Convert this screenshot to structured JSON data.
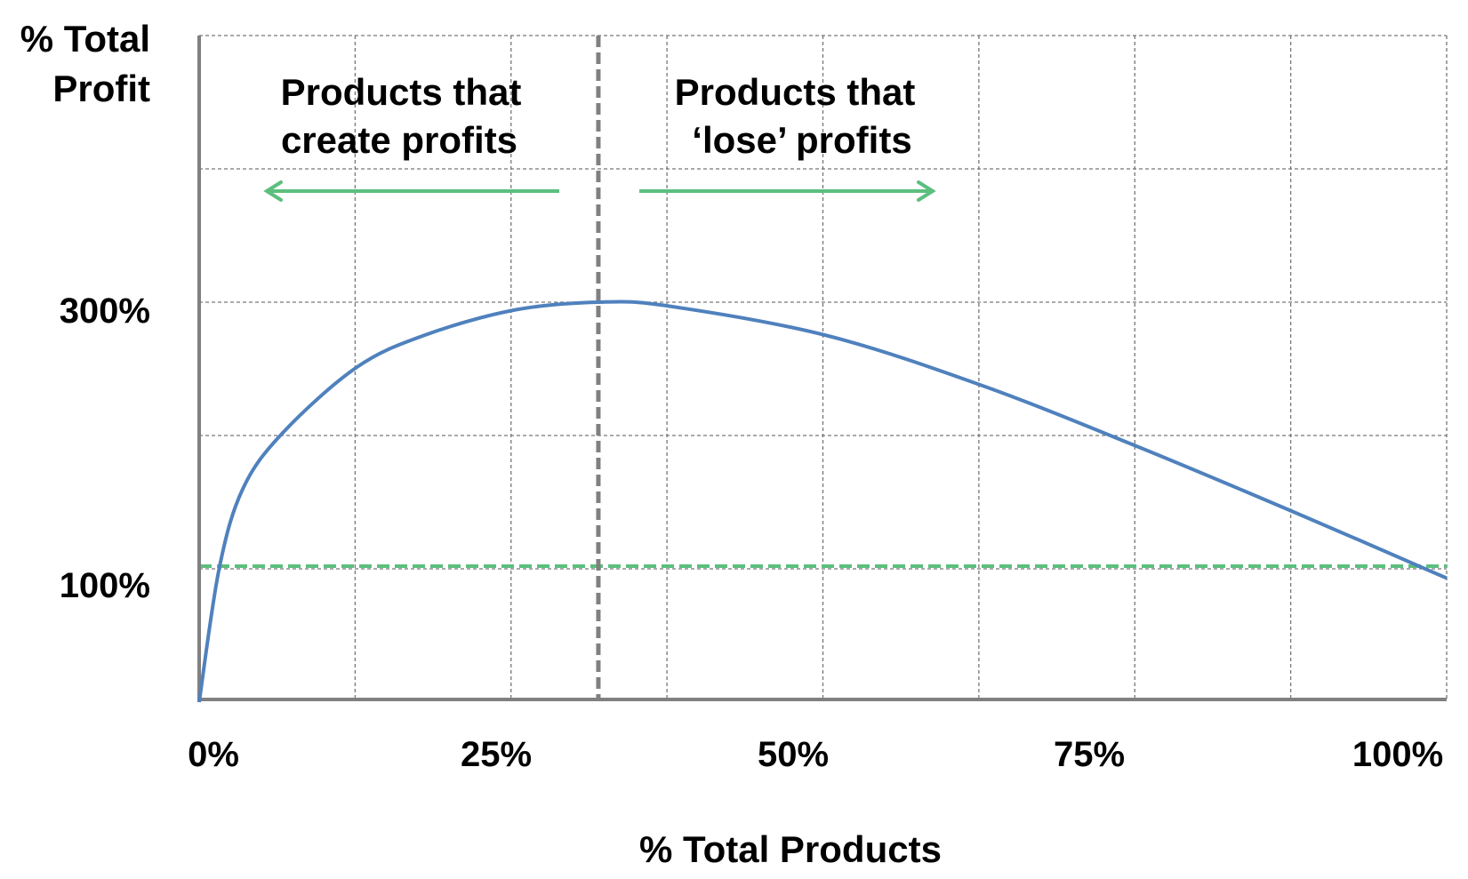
{
  "chart_data": {
    "type": "line",
    "title": "",
    "xlabel": "% Total Products",
    "ylabel_lines": [
      "% Total",
      "Profit"
    ],
    "xlim": [
      0,
      100
    ],
    "ylim": [
      0,
      500
    ],
    "grid": true,
    "x_ticks": [
      {
        "value": 0,
        "label": "0%"
      },
      {
        "value": 25,
        "label": "25%"
      },
      {
        "value": 50,
        "label": "50%"
      },
      {
        "value": 75,
        "label": "75%"
      },
      {
        "value": 100,
        "label": "100%"
      }
    ],
    "y_ticks": [
      {
        "value": 300,
        "label": "300%"
      },
      {
        "value": 100,
        "label": "100%"
      }
    ],
    "series": [
      {
        "color": "#4f81bd",
        "x": [
          0,
          1.6,
          3.5,
          6.7,
          12.6,
          18,
          25.2,
          32,
          37.7,
          50.3,
          62.9,
          75.4,
          87.9,
          100
        ],
        "y": [
          0,
          100,
          160,
          202,
          251,
          275,
          294,
          300,
          297,
          275,
          237,
          191,
          142,
          93
        ]
      }
    ],
    "reference_lines": [
      {
        "orientation": "horizontal",
        "value": 102,
        "color": "#5cbf7e",
        "style": "dashed"
      },
      {
        "orientation": "vertical",
        "value": 32,
        "color": "#808080",
        "style": "dashed"
      }
    ],
    "annotations": [
      {
        "lines": [
          "Products that",
          "create profits"
        ],
        "arrow": "left",
        "arrow_color": "#5cbf7e"
      },
      {
        "lines": [
          "Products that",
          "‘lose’ profits"
        ],
        "arrow": "right",
        "arrow_color": "#5cbf7e"
      }
    ]
  }
}
